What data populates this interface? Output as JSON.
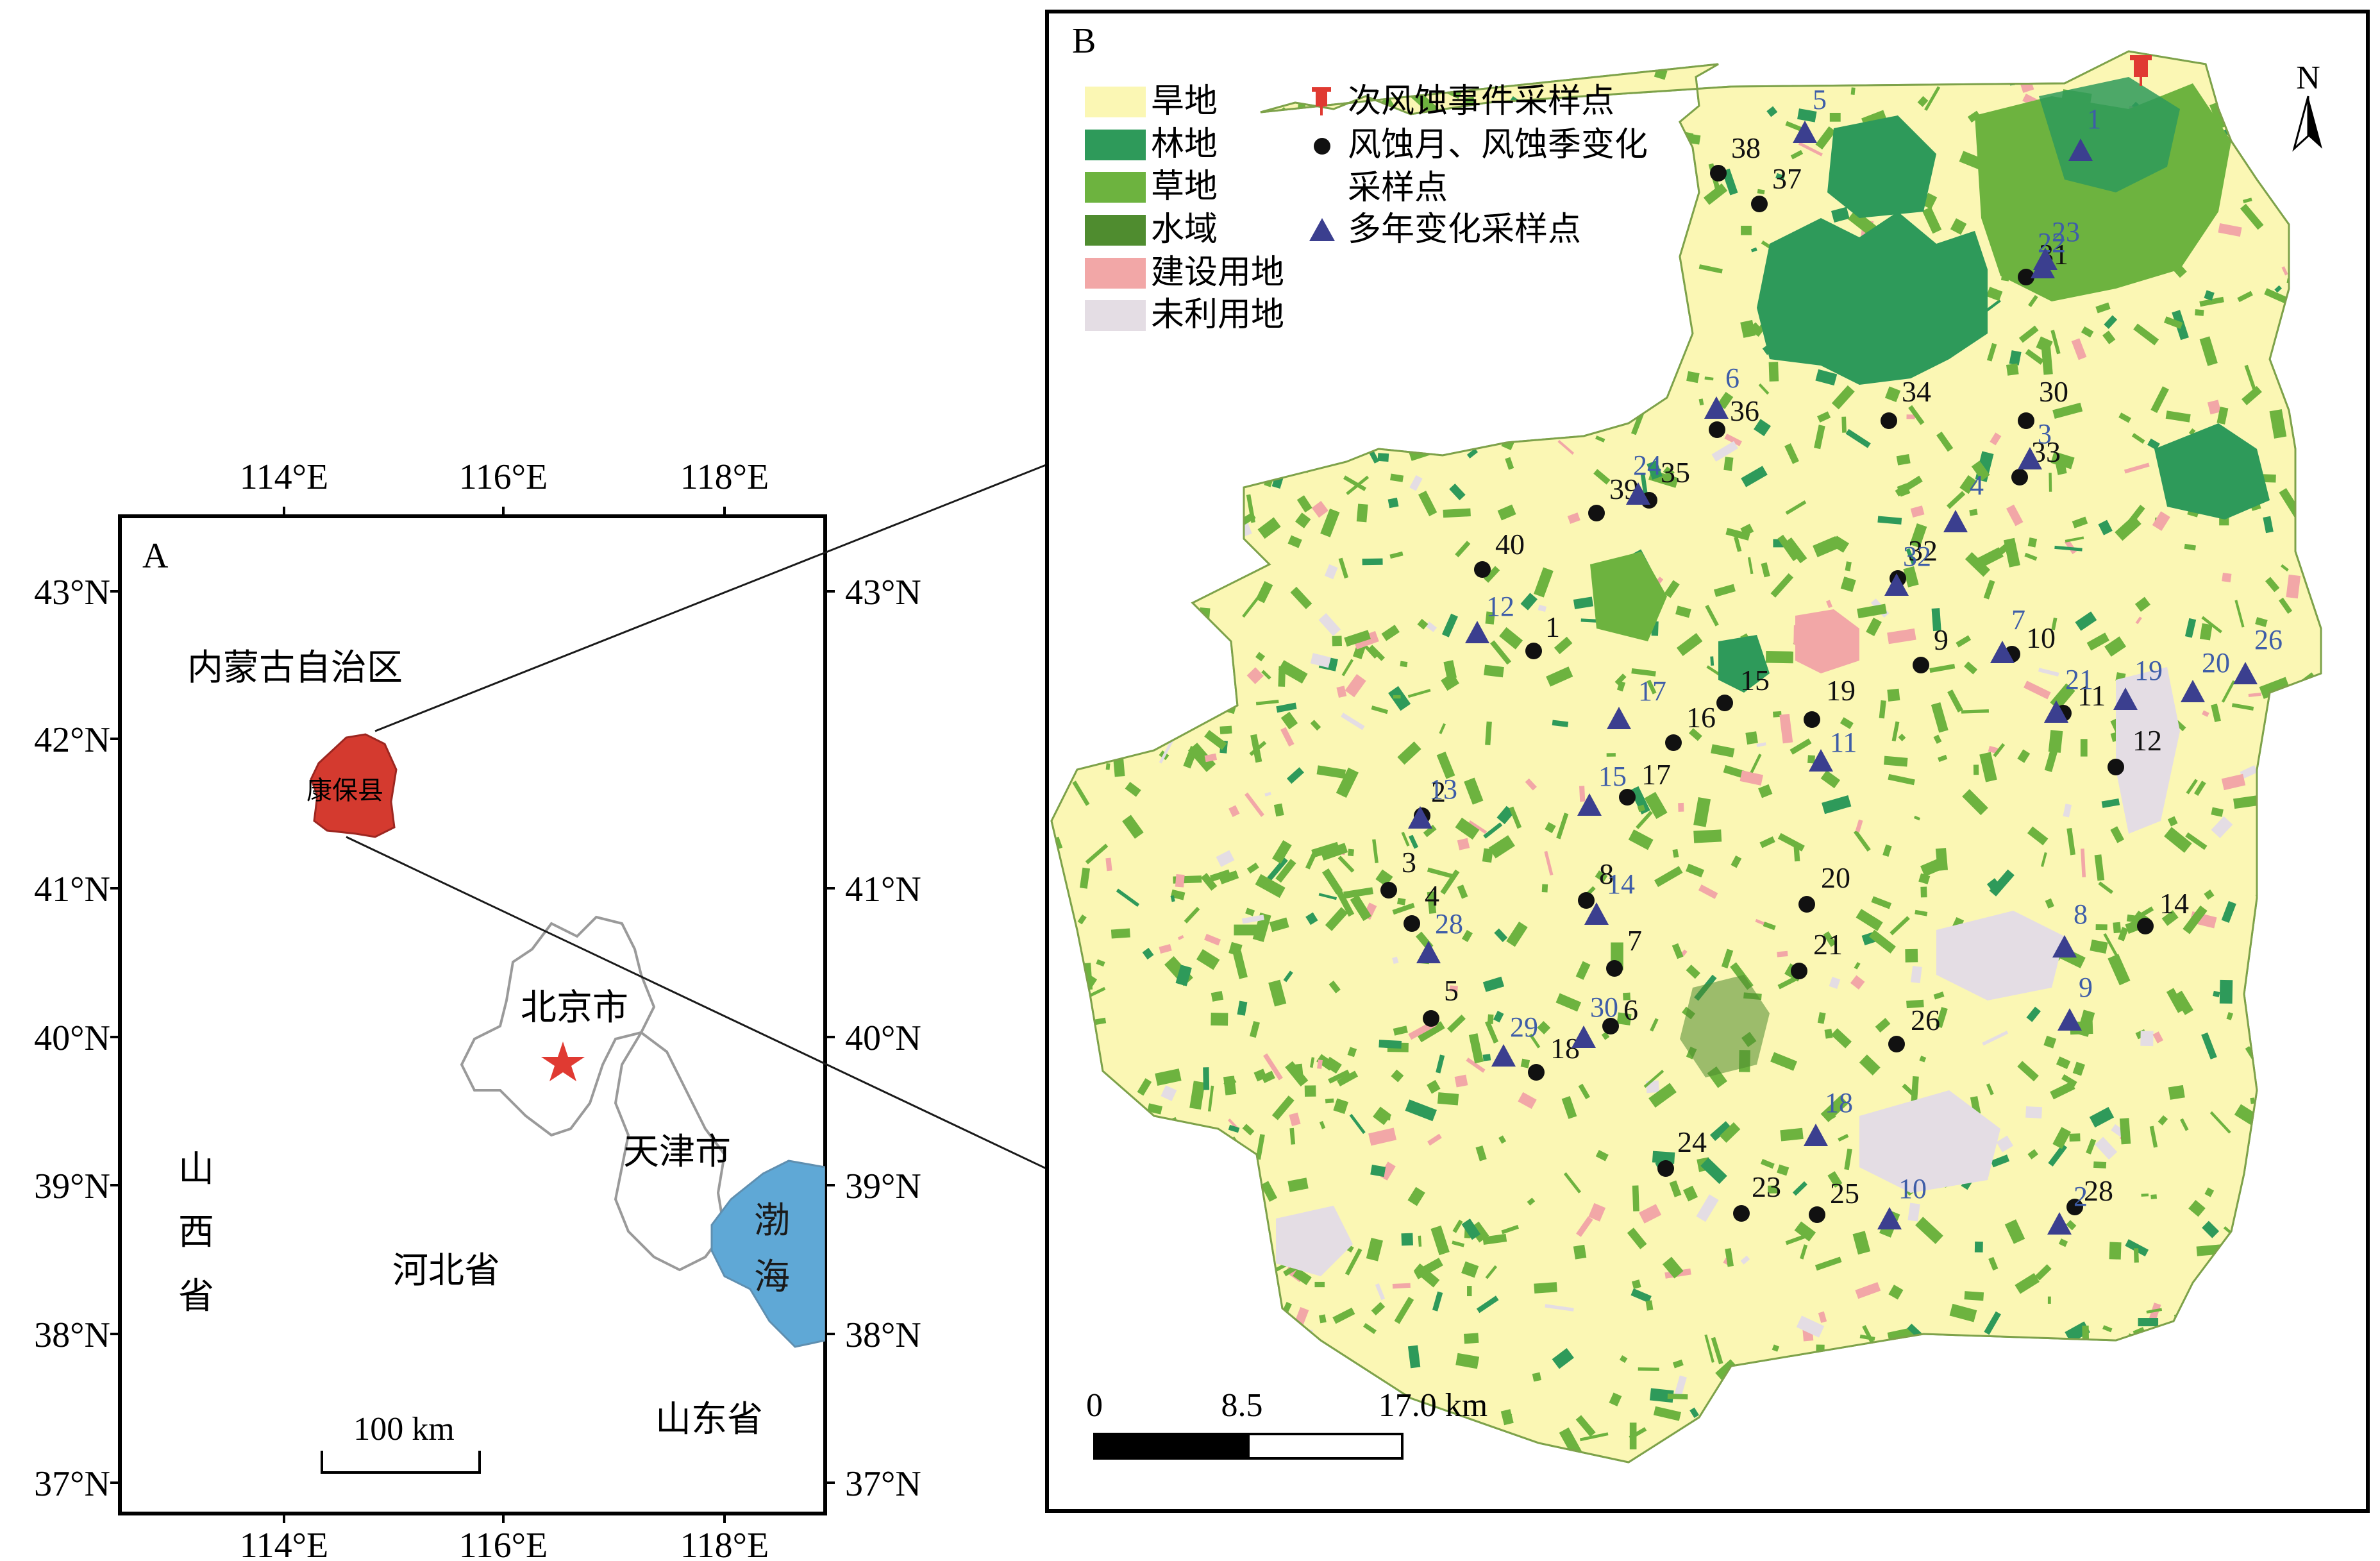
{
  "colors": {
    "dryland": "#fbf7b4",
    "forest": "#2e9a5a",
    "grassland": "#6db33f",
    "water": "#4f8c2f",
    "construction": "#f2a7a7",
    "unused": "#e4dde4",
    "sea": "#5fa8d6",
    "county": "#d43a2f",
    "star": "#e03a32",
    "border": "#9a9a9a",
    "triangle": "#3b3f8f",
    "dot": "#111111",
    "blue_label": "#3e5da8"
  },
  "panel_a": {
    "letter": "A",
    "top_ticks": [
      "114°E",
      "116°E",
      "118°E"
    ],
    "bottom_ticks": [
      "114°E",
      "116°E",
      "118°E"
    ],
    "left_ticks": [
      "43°N",
      "42°N",
      "41°N",
      "40°N",
      "39°N",
      "38°N",
      "37°N"
    ],
    "right_ticks": [
      "43°N",
      "41°N",
      "40°N",
      "39°N",
      "38°N",
      "37°N"
    ],
    "inner_mongolia": "内蒙古自治区",
    "county": "康保县",
    "beijing": "北京市",
    "tianjin": "天津市",
    "hebei": "河北省",
    "shanxi": [
      "山",
      "西",
      "省"
    ],
    "shandong": "山东省",
    "bohai": [
      "渤",
      "海"
    ],
    "scale": "100 km"
  },
  "panel_b": {
    "letter": "B",
    "north": "N",
    "legend_landuse": [
      "旱地",
      "林地",
      "草地",
      "水域",
      "建设用地",
      "未利用地"
    ],
    "legend_points": {
      "event": "次风蚀事件采样点",
      "monthly_1": "风蚀月、风蚀季变化",
      "monthly_2": "采样点",
      "multiyear": "多年变化采样点"
    },
    "scale_labels": [
      "0",
      "8.5",
      "17.0 km"
    ],
    "dots": [
      {
        "label": "1"
      },
      {
        "label": "2"
      },
      {
        "label": "3"
      },
      {
        "label": "4"
      },
      {
        "label": "5"
      },
      {
        "label": "6"
      },
      {
        "label": "7"
      },
      {
        "label": "8"
      },
      {
        "label": "9"
      },
      {
        "label": "10"
      },
      {
        "label": "11"
      },
      {
        "label": "12"
      },
      {
        "label": "14"
      },
      {
        "label": "15"
      },
      {
        "label": "16"
      },
      {
        "label": "17"
      },
      {
        "label": "18"
      },
      {
        "label": "19"
      },
      {
        "label": "20"
      },
      {
        "label": "21"
      },
      {
        "label": "23"
      },
      {
        "label": "24"
      },
      {
        "label": "25"
      },
      {
        "label": "26"
      },
      {
        "label": "28"
      },
      {
        "label": "30"
      },
      {
        "label": "31"
      },
      {
        "label": "32"
      },
      {
        "label": "33"
      },
      {
        "label": "34"
      },
      {
        "label": "35"
      },
      {
        "label": "36"
      },
      {
        "label": "37"
      },
      {
        "label": "38"
      },
      {
        "label": "39"
      },
      {
        "label": "40"
      }
    ],
    "triangles": [
      {
        "label": "1"
      },
      {
        "label": "2"
      },
      {
        "label": "3"
      },
      {
        "label": "4"
      },
      {
        "label": "5"
      },
      {
        "label": "6"
      },
      {
        "label": "7"
      },
      {
        "label": "8"
      },
      {
        "label": "9"
      },
      {
        "label": "10"
      },
      {
        "label": "11"
      },
      {
        "label": "12"
      },
      {
        "label": "13"
      },
      {
        "label": "14"
      },
      {
        "label": "15"
      },
      {
        "label": "17"
      },
      {
        "label": "18"
      },
      {
        "label": "19"
      },
      {
        "label": "20"
      },
      {
        "label": "21"
      },
      {
        "label": "22"
      },
      {
        "label": "23"
      },
      {
        "label": "24"
      },
      {
        "label": "26"
      },
      {
        "label": "28"
      },
      {
        "label": "29"
      },
      {
        "label": "30"
      },
      {
        "label": "32"
      }
    ]
  }
}
